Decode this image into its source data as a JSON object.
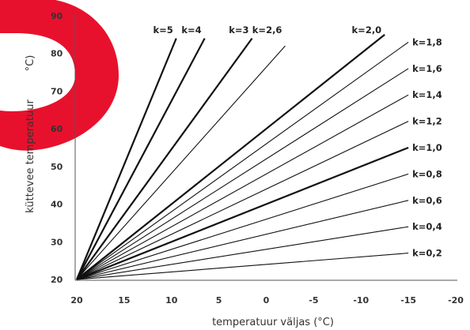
{
  "chart_data": {
    "type": "line",
    "title": "",
    "xlabel": "temperatuur väljas (°C)",
    "ylabel": "küttevee temperatuur",
    "ylabel_unit": "°C)",
    "xlim": [
      20,
      -20
    ],
    "ylim": [
      20,
      90
    ],
    "xticks": [
      "20",
      "15",
      "10",
      "5",
      "0",
      "-5",
      "-10",
      "-15",
      "-20"
    ],
    "yticks": [
      "20",
      "30",
      "40",
      "50",
      "60",
      "70",
      "80",
      "90"
    ],
    "grid": false,
    "series": [
      {
        "name": "k=0,2",
        "x": [
          20,
          -15
        ],
        "y": [
          20,
          27
        ]
      },
      {
        "name": "k=0,4",
        "x": [
          20,
          -15
        ],
        "y": [
          20,
          34
        ]
      },
      {
        "name": "k=0,6",
        "x": [
          20,
          -15
        ],
        "y": [
          20,
          41
        ]
      },
      {
        "name": "k=0,8",
        "x": [
          20,
          -15
        ],
        "y": [
          20,
          48
        ]
      },
      {
        "name": "k=1,0",
        "x": [
          20,
          -15
        ],
        "y": [
          20,
          55
        ]
      },
      {
        "name": "k=1,2",
        "x": [
          20,
          -15
        ],
        "y": [
          20,
          62
        ]
      },
      {
        "name": "k=1,4",
        "x": [
          20,
          -15
        ],
        "y": [
          20,
          69
        ]
      },
      {
        "name": "k=1,6",
        "x": [
          20,
          -15
        ],
        "y": [
          20,
          76
        ]
      },
      {
        "name": "k=1,8",
        "x": [
          20,
          -15
        ],
        "y": [
          20,
          83
        ]
      },
      {
        "name": "k=2,0",
        "x": [
          20,
          -12.5
        ],
        "y": [
          20,
          85
        ]
      },
      {
        "name": "k=2,6",
        "x": [
          20,
          -2
        ],
        "y": [
          20,
          82
        ]
      },
      {
        "name": "k=3",
        "x": [
          20,
          1.5
        ],
        "y": [
          20,
          84
        ]
      },
      {
        "name": "k=4",
        "x": [
          20,
          6.5
        ],
        "y": [
          20,
          84
        ]
      },
      {
        "name": "k=5",
        "x": [
          20,
          9.5
        ],
        "y": [
          20,
          84
        ]
      }
    ]
  },
  "colors": {
    "line": "#111111",
    "axis": "#555555",
    "watermark": "#e8112d"
  }
}
